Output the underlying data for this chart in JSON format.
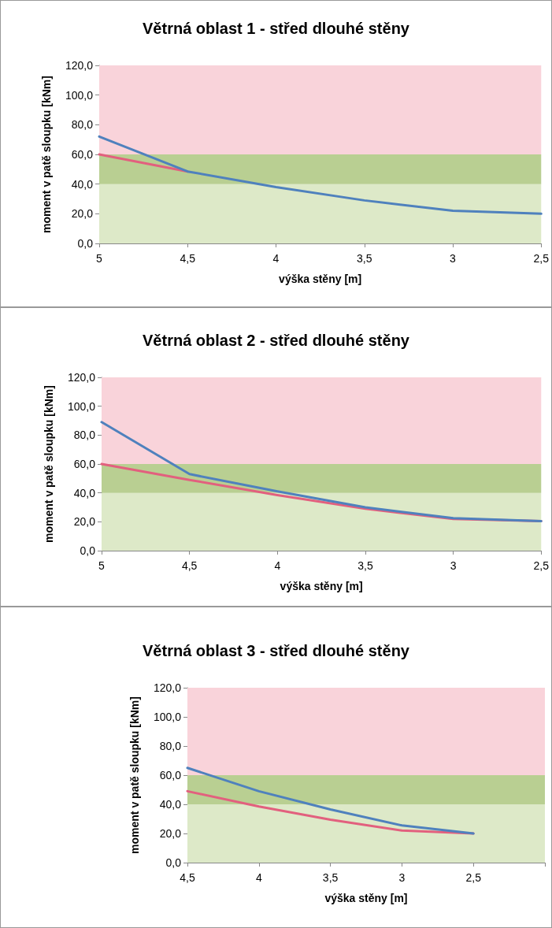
{
  "chart_data": [
    {
      "type": "line",
      "title": "Větrná oblast 1 - střed dlouhé stěny",
      "xlabel": "výška stěny [m]",
      "ylabel": "moment v patě sloupku [kNm]",
      "categories": [
        "5",
        "4,5",
        "4",
        "3,5",
        "3",
        "2,5"
      ],
      "series": [
        {
          "color": "#e2607e",
          "values": [
            60,
            48.5,
            null,
            null,
            null,
            null
          ]
        },
        {
          "color": "#4f81bd",
          "values": [
            72,
            48.5,
            38,
            29,
            22,
            20
          ]
        }
      ],
      "ylim": [
        0,
        120
      ],
      "yticks": [
        {
          "value": 0,
          "label": "0,0"
        },
        {
          "value": 20,
          "label": "20,0"
        },
        {
          "value": 40,
          "label": "40,0"
        },
        {
          "value": 60,
          "label": "60,0"
        },
        {
          "value": 80,
          "label": "80,0"
        },
        {
          "value": 100,
          "label": "100,0"
        },
        {
          "value": 120,
          "label": "120,0"
        }
      ],
      "bands": [
        {
          "axis": "y",
          "from": 0,
          "to": 40,
          "color": "#dde9c8"
        },
        {
          "axis": "y",
          "from": 40,
          "to": 60,
          "color": "#b9cf92"
        },
        {
          "axis": "y",
          "from": 60,
          "to": 120,
          "color": "#f9d3da"
        }
      ],
      "grid": false,
      "marker": "none",
      "line_style": "solid"
    },
    {
      "type": "line",
      "title": "Větrná oblast 2 - střed dlouhé stěny",
      "xlabel": "výška stěny [m]",
      "ylabel": "moment v patě sloupku [kNm]",
      "categories": [
        "5",
        "4,5",
        "4",
        "3,5",
        "3",
        "2,5"
      ],
      "series": [
        {
          "color": "#e2607e",
          "values": [
            60,
            49,
            38.5,
            29,
            22,
            20.5
          ]
        },
        {
          "color": "#4f81bd",
          "values": [
            89,
            53,
            41,
            30,
            22.5,
            20.5
          ]
        }
      ],
      "ylim": [
        0,
        120
      ],
      "yticks": [
        {
          "value": 0,
          "label": "0,0"
        },
        {
          "value": 20,
          "label": "20,0"
        },
        {
          "value": 40,
          "label": "40,0"
        },
        {
          "value": 60,
          "label": "60,0"
        },
        {
          "value": 80,
          "label": "80,0"
        },
        {
          "value": 100,
          "label": "100,0"
        },
        {
          "value": 120,
          "label": "120,0"
        }
      ],
      "bands": [
        {
          "axis": "y",
          "from": 0,
          "to": 40,
          "color": "#dde9c8"
        },
        {
          "axis": "y",
          "from": 40,
          "to": 60,
          "color": "#b9cf92"
        },
        {
          "axis": "y",
          "from": 60,
          "to": 120,
          "color": "#f9d3da"
        }
      ],
      "grid": false,
      "marker": "none",
      "line_style": "solid"
    },
    {
      "type": "line",
      "title": "Větrná oblast 3 - střed dlouhé stěny",
      "xlabel": "výška stěny [m]",
      "ylabel": "moment v patě sloupku [kNm]",
      "categories": [
        "4,5",
        "4",
        "3,5",
        "3",
        "2,5",
        null
      ],
      "series": [
        {
          "color": "#e2607e",
          "values": [
            49,
            38.5,
            29.5,
            22,
            20,
            null
          ]
        },
        {
          "color": "#4f81bd",
          "values": [
            65,
            49,
            36.5,
            25.5,
            20,
            null
          ]
        }
      ],
      "ylim": [
        0,
        120
      ],
      "yticks": [
        {
          "value": 0,
          "label": "0,0"
        },
        {
          "value": 20,
          "label": "20,0"
        },
        {
          "value": 40,
          "label": "40,0"
        },
        {
          "value": 60,
          "label": "60,0"
        },
        {
          "value": 80,
          "label": "80,0"
        },
        {
          "value": 100,
          "label": "100,0"
        },
        {
          "value": 120,
          "label": "120,0"
        }
      ],
      "bands": [
        {
          "axis": "y",
          "from": 0,
          "to": 40,
          "color": "#dde9c8"
        },
        {
          "axis": "y",
          "from": 40,
          "to": 60,
          "color": "#b9cf92"
        },
        {
          "axis": "y",
          "from": 60,
          "to": 120,
          "color": "#f9d3da"
        }
      ],
      "grid": false,
      "marker": "none",
      "line_style": "solid"
    }
  ]
}
